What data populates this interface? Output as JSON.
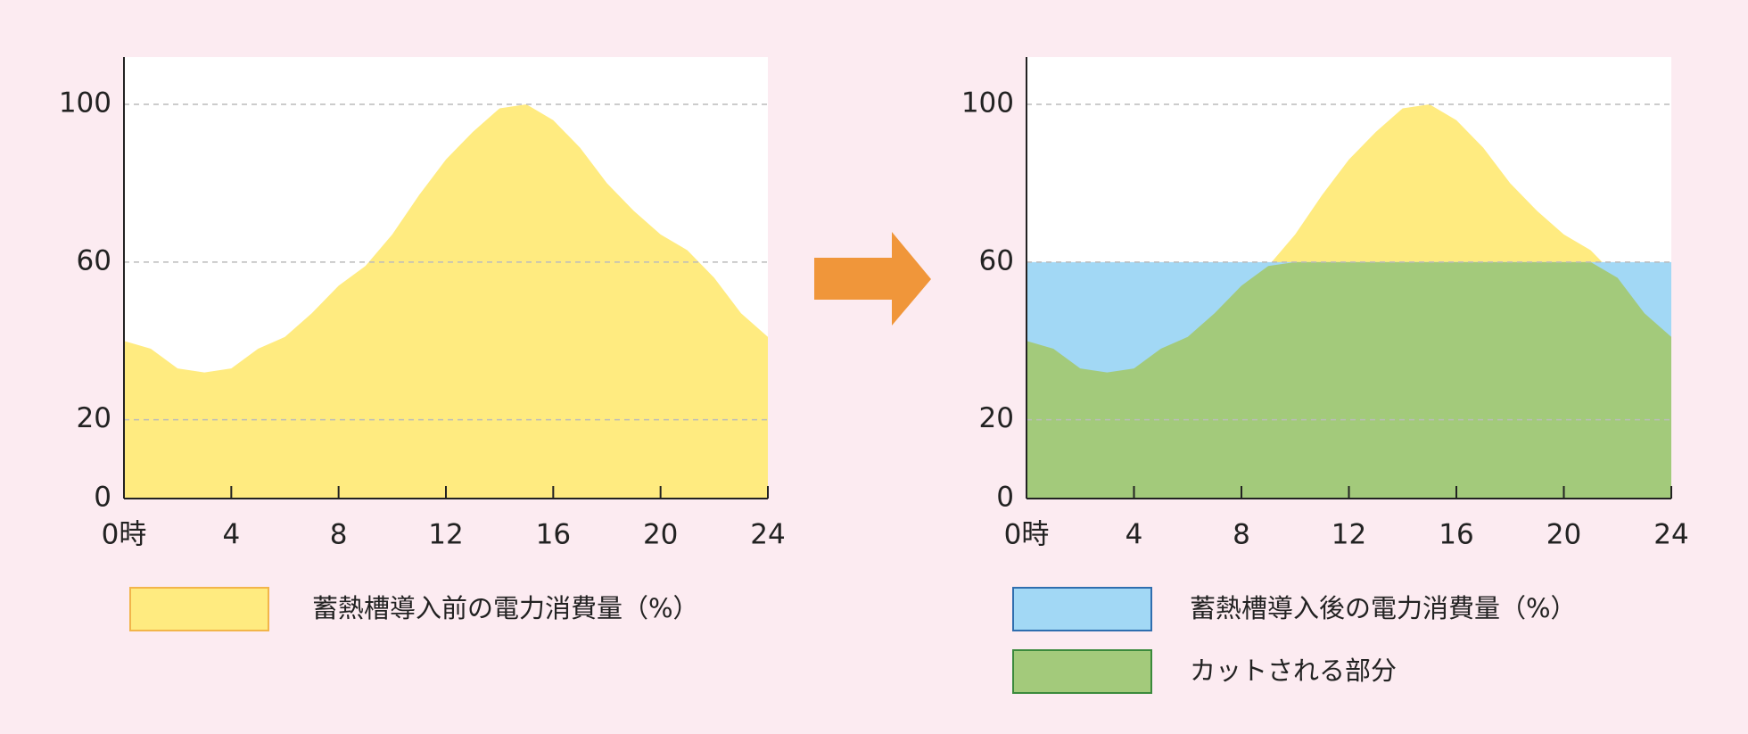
{
  "chart_data": [
    {
      "type": "area",
      "x": [
        0,
        1,
        2,
        3,
        4,
        5,
        6,
        7,
        8,
        9,
        10,
        11,
        12,
        13,
        14,
        15,
        16,
        17,
        18,
        19,
        20,
        21,
        22,
        23,
        24
      ],
      "xlim": [
        0,
        24
      ],
      "xticks": [
        {
          "value": 0,
          "label": "0時"
        },
        4,
        8,
        12,
        16,
        20,
        24
      ],
      "ylim": [
        0,
        112
      ],
      "yticks": [
        0,
        20,
        60,
        100
      ],
      "grid": true,
      "series": [
        {
          "name": "蓄熱槽導入前の電力消費量（%）",
          "color": "#ffeb80",
          "edgecolor": "#f2b54a",
          "values": [
            40,
            38,
            33,
            32,
            33,
            38,
            41,
            47,
            54,
            59,
            67,
            77,
            86,
            93,
            99,
            100,
            96,
            89,
            80,
            73,
            67,
            63,
            56,
            47,
            41
          ]
        }
      ]
    },
    {
      "type": "area",
      "x": [
        0,
        1,
        2,
        3,
        4,
        5,
        6,
        7,
        8,
        9,
        10,
        11,
        12,
        13,
        14,
        15,
        16,
        17,
        18,
        19,
        20,
        21,
        22,
        23,
        24
      ],
      "xlim": [
        0,
        24
      ],
      "xticks": [
        {
          "value": 0,
          "label": "0時"
        },
        4,
        8,
        12,
        16,
        20,
        24
      ],
      "ylim": [
        0,
        112
      ],
      "yticks": [
        0,
        20,
        60,
        100
      ],
      "grid": true,
      "series": [
        {
          "color": "#ffeb80",
          "values": [
            40,
            38,
            33,
            32,
            33,
            38,
            41,
            47,
            54,
            59,
            67,
            77,
            86,
            93,
            99,
            100,
            96,
            89,
            80,
            73,
            67,
            63,
            56,
            47,
            41
          ]
        },
        {
          "name": "蓄熱槽導入後の電力消費量（%）",
          "color": "#a2d8f5",
          "edgecolor": "#2f6eaf",
          "values": [
            60,
            60,
            60,
            60,
            60,
            60,
            60,
            60,
            60,
            60,
            60,
            60,
            60,
            60,
            60,
            60,
            60,
            60,
            60,
            60,
            60,
            60,
            60,
            60,
            60
          ]
        },
        {
          "name": "カットされる部分",
          "color": "#a3ca7b",
          "edgecolor": "#3b8a3c",
          "values": [
            40,
            38,
            33,
            32,
            33,
            38,
            41,
            47,
            54,
            59,
            60,
            60,
            60,
            60,
            60,
            60,
            60,
            60,
            60,
            60,
            60,
            60,
            56,
            47,
            41
          ]
        }
      ]
    }
  ]
}
